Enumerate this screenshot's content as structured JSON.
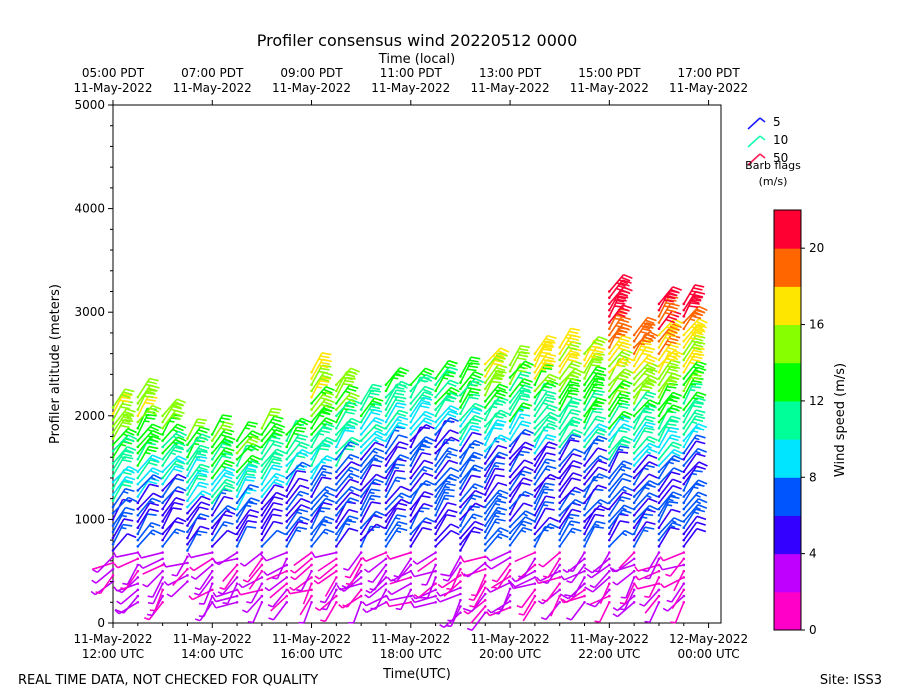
{
  "chart_data": {
    "type": "wind-barb",
    "title": "Profiler consensus wind 20220512 0000",
    "xlabel_top": "Time (local)",
    "xlabel": "Time(UTC)",
    "ylabel": "Profiler altitude (meters)",
    "ylim": [
      0,
      5000
    ],
    "xlim_hours_utc": [
      12,
      24.25
    ],
    "yticks": [
      0,
      1000,
      2000,
      3000,
      4000,
      5000
    ],
    "yticks_labels": [
      "0",
      "1000",
      "2000",
      "3000",
      "4000",
      "5000"
    ],
    "xticks_utc": [
      {
        "hour": 12,
        "line1": "11-May-2022",
        "line2": "12:00 UTC"
      },
      {
        "hour": 14,
        "line1": "11-May-2022",
        "line2": "14:00 UTC"
      },
      {
        "hour": 16,
        "line1": "11-May-2022",
        "line2": "16:00 UTC"
      },
      {
        "hour": 18,
        "line1": "11-May-2022",
        "line2": "18:00 UTC"
      },
      {
        "hour": 20,
        "line1": "11-May-2022",
        "line2": "20:00 UTC"
      },
      {
        "hour": 22,
        "line1": "11-May-2022",
        "line2": "22:00 UTC"
      },
      {
        "hour": 24,
        "line1": "12-May-2022",
        "line2": "00:00 UTC"
      }
    ],
    "xticks_local": [
      {
        "hour": 12,
        "line1": "05:00 PDT",
        "line2": "11-May-2022"
      },
      {
        "hour": 14,
        "line1": "07:00 PDT",
        "line2": "11-May-2022"
      },
      {
        "hour": 16,
        "line1": "09:00 PDT",
        "line2": "11-May-2022"
      },
      {
        "hour": 18,
        "line1": "11:00 PDT",
        "line2": "11-May-2022"
      },
      {
        "hour": 20,
        "line1": "13:00 PDT",
        "line2": "11-May-2022"
      },
      {
        "hour": 22,
        "line1": "15:00 PDT",
        "line2": "11-May-2022"
      },
      {
        "hour": 24,
        "line1": "17:00 PDT",
        "line2": "11-May-2022"
      }
    ],
    "barb_legend": {
      "title_line1": "Barb flags",
      "title_line2": "(m/s)",
      "entries": [
        {
          "label": "5",
          "color": "#1a1aff"
        },
        {
          "label": "10",
          "color": "#19ffb0"
        },
        {
          "label": "50",
          "color": "#ff1a55"
        }
      ]
    },
    "colorbar": {
      "label": "Wind speed (m/s)",
      "ticks": [
        "0",
        "4",
        "8",
        "12",
        "16",
        "20"
      ],
      "tick_values": [
        0,
        4,
        8,
        12,
        16,
        20
      ],
      "range": [
        0,
        22
      ],
      "colors": [
        "#ff00c8",
        "#c000ff",
        "#3300ff",
        "#0055ff",
        "#00e5ff",
        "#00ff99",
        "#00ff00",
        "#88ff00",
        "#ffe600",
        "#ff6600",
        "#ff0033"
      ]
    },
    "profiles": [
      {
        "t": 12.0,
        "low": 400,
        "high": 2100,
        "mid": 1100
      },
      {
        "t": 12.5,
        "low": 200,
        "high": 2200,
        "mid": 1200
      },
      {
        "t": 13.0,
        "low": 200,
        "high": 2000,
        "mid": 1300
      },
      {
        "t": 13.5,
        "low": 400,
        "high": 1800,
        "mid": 1100
      },
      {
        "t": 14.0,
        "low": 200,
        "high": 1850,
        "mid": 1100
      },
      {
        "t": 14.5,
        "low": 200,
        "high": 1800,
        "mid": 1100
      },
      {
        "t": 15.0,
        "low": 200,
        "high": 1900,
        "mid": 1200
      },
      {
        "t": 15.5,
        "low": 200,
        "high": 1850,
        "mid": 1300
      },
      {
        "t": 16.0,
        "low": 200,
        "high": 2450,
        "mid": 1400
      },
      {
        "t": 16.5,
        "low": 200,
        "high": 2300,
        "mid": 1500
      },
      {
        "t": 17.0,
        "low": 200,
        "high": 2150,
        "mid": 1600
      },
      {
        "t": 17.5,
        "low": 200,
        "high": 2300,
        "mid": 1700
      },
      {
        "t": 18.0,
        "low": 200,
        "high": 2300,
        "mid": 1800
      },
      {
        "t": 18.5,
        "low": 200,
        "high": 2400,
        "mid": 1800
      },
      {
        "t": 19.0,
        "low": 100,
        "high": 2400,
        "mid": 1700
      },
      {
        "t": 19.5,
        "low": 100,
        "high": 2550,
        "mid": 1600
      },
      {
        "t": 20.0,
        "low": 150,
        "high": 2500,
        "mid": 1700
      },
      {
        "t": 20.5,
        "low": 200,
        "high": 2600,
        "mid": 1600
      },
      {
        "t": 21.0,
        "low": 200,
        "high": 2700,
        "mid": 1600
      },
      {
        "t": 21.5,
        "low": 200,
        "high": 2650,
        "mid": 1600
      },
      {
        "t": 22.0,
        "low": 200,
        "high": 3200,
        "mid": 1500
      },
      {
        "t": 22.5,
        "low": 200,
        "high": 2800,
        "mid": 1500
      },
      {
        "t": 23.0,
        "low": 200,
        "high": 3100,
        "mid": 1500
      },
      {
        "t": 23.5,
        "low": 200,
        "high": 3100,
        "mid": 1600
      }
    ]
  },
  "footer": {
    "left": "REAL TIME DATA, NOT CHECKED FOR QUALITY",
    "right": "Site: ISS3"
  }
}
